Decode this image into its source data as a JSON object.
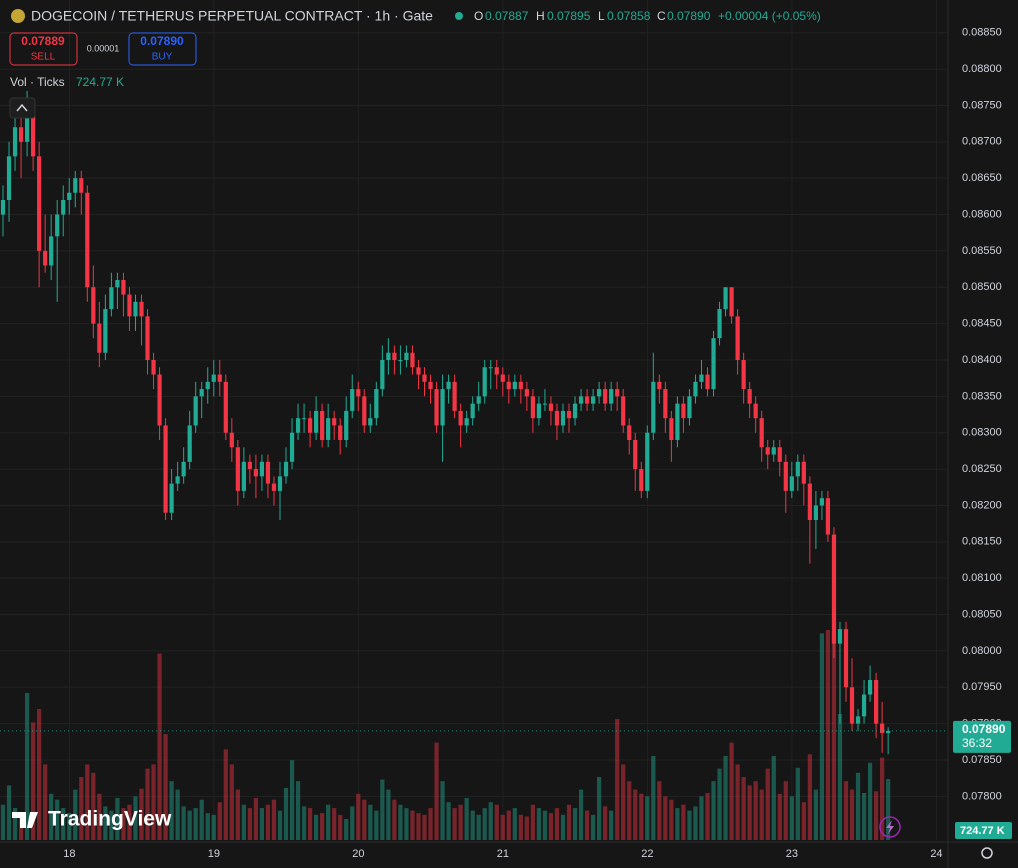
{
  "chart_data": {
    "type": "candlestick",
    "title": "DOGECOIN / TETHERUS PERPETUAL CONTRACT · 1h · Gate",
    "ohlc_legend": [
      {
        "key": "O",
        "value": "0.07887"
      },
      {
        "key": "H",
        "value": "0.07895"
      },
      {
        "key": "L",
        "value": "0.07858"
      },
      {
        "key": "C",
        "value": "0.07890"
      }
    ],
    "change": "+0.00004 (+0.05%)",
    "sell": {
      "price": "0.07889",
      "label": "SELL"
    },
    "spread": "0.00001",
    "buy": {
      "price": "0.07890",
      "label": "BUY"
    },
    "volume_legend": {
      "label": "Vol · Ticks",
      "value": "724.77 K"
    },
    "last_price_badge": {
      "price": "0.07890",
      "countdown": "36:32"
    },
    "volume_badge": "724.77 K",
    "watermark": "TradingView",
    "up_color": "#22ab94",
    "down_color": "#f23645",
    "grid": true,
    "xlim": [
      17.52,
      24.08
    ],
    "xticks": [
      18,
      19,
      20,
      21,
      22,
      23,
      24
    ],
    "ylim": [
      0.0774,
      0.08895
    ],
    "yticks": [
      {
        "value": 0.078,
        "label": "0.07800"
      },
      {
        "value": 0.0785,
        "label": "0.07850"
      },
      {
        "value": 0.079,
        "label": "0.07900"
      },
      {
        "value": 0.0795,
        "label": "0.07950"
      },
      {
        "value": 0.08,
        "label": "0.08000"
      },
      {
        "value": 0.0805,
        "label": "0.08050"
      },
      {
        "value": 0.081,
        "label": "0.08100"
      },
      {
        "value": 0.0815,
        "label": "0.08150"
      },
      {
        "value": 0.082,
        "label": "0.08200"
      },
      {
        "value": 0.0825,
        "label": "0.08250"
      },
      {
        "value": 0.083,
        "label": "0.08300"
      },
      {
        "value": 0.0835,
        "label": "0.08350"
      },
      {
        "value": 0.084,
        "label": "0.08400"
      },
      {
        "value": 0.0845,
        "label": "0.08450"
      },
      {
        "value": 0.085,
        "label": "0.08500"
      },
      {
        "value": 0.0855,
        "label": "0.08550"
      },
      {
        "value": 0.086,
        "label": "0.08600"
      },
      {
        "value": 0.0865,
        "label": "0.08650"
      },
      {
        "value": 0.087,
        "label": "0.08700"
      },
      {
        "value": 0.0875,
        "label": "0.08750"
      },
      {
        "value": 0.088,
        "label": "0.08800"
      },
      {
        "value": 0.0885,
        "label": "0.08850"
      }
    ],
    "candles": [
      [
        0.086,
        0.0864,
        0.0857,
        0.0862
      ],
      [
        0.0862,
        0.087,
        0.0859,
        0.0868
      ],
      [
        0.0868,
        0.0874,
        0.0866,
        0.0872
      ],
      [
        0.0872,
        0.0874,
        0.0865,
        0.087
      ],
      [
        0.087,
        0.0877,
        0.0868,
        0.0875
      ],
      [
        0.0875,
        0.0876,
        0.0866,
        0.0868
      ],
      [
        0.0868,
        0.087,
        0.085,
        0.0855
      ],
      [
        0.0855,
        0.086,
        0.0852,
        0.0853
      ],
      [
        0.0853,
        0.086,
        0.0851,
        0.0857
      ],
      [
        0.0857,
        0.0862,
        0.0848,
        0.086
      ],
      [
        0.086,
        0.0864,
        0.0857,
        0.0862
      ],
      [
        0.0862,
        0.0865,
        0.086,
        0.0863
      ],
      [
        0.0863,
        0.0866,
        0.0861,
        0.0865
      ],
      [
        0.0865,
        0.0866,
        0.086,
        0.0863
      ],
      [
        0.0863,
        0.0864,
        0.0848,
        0.085
      ],
      [
        0.085,
        0.0853,
        0.0843,
        0.0845
      ],
      [
        0.0845,
        0.0848,
        0.0839,
        0.0841
      ],
      [
        0.0841,
        0.0849,
        0.084,
        0.0847
      ],
      [
        0.0847,
        0.0852,
        0.0846,
        0.085
      ],
      [
        0.085,
        0.0852,
        0.0847,
        0.0851
      ],
      [
        0.0851,
        0.0852,
        0.0846,
        0.0849
      ],
      [
        0.0849,
        0.085,
        0.0844,
        0.0846
      ],
      [
        0.0846,
        0.0849,
        0.0844,
        0.0848
      ],
      [
        0.0848,
        0.0849,
        0.0842,
        0.0846
      ],
      [
        0.0846,
        0.0847,
        0.0838,
        0.084
      ],
      [
        0.084,
        0.0841,
        0.0836,
        0.0838
      ],
      [
        0.0838,
        0.0839,
        0.0829,
        0.0831
      ],
      [
        0.0831,
        0.0832,
        0.0818,
        0.0819
      ],
      [
        0.0819,
        0.0825,
        0.0818,
        0.0823
      ],
      [
        0.0823,
        0.0826,
        0.0822,
        0.0824
      ],
      [
        0.0824,
        0.0828,
        0.0823,
        0.0826
      ],
      [
        0.0826,
        0.0833,
        0.0825,
        0.0831
      ],
      [
        0.0831,
        0.0837,
        0.083,
        0.0835
      ],
      [
        0.0835,
        0.0837,
        0.0832,
        0.0836
      ],
      [
        0.0836,
        0.0839,
        0.0834,
        0.0837
      ],
      [
        0.0837,
        0.084,
        0.0835,
        0.0838
      ],
      [
        0.0838,
        0.084,
        0.0835,
        0.0837
      ],
      [
        0.0837,
        0.0838,
        0.0829,
        0.083
      ],
      [
        0.083,
        0.0832,
        0.0826,
        0.0828
      ],
      [
        0.0828,
        0.0829,
        0.082,
        0.0822
      ],
      [
        0.0822,
        0.0828,
        0.0821,
        0.0826
      ],
      [
        0.0826,
        0.0827,
        0.0823,
        0.0825
      ],
      [
        0.0825,
        0.0827,
        0.0821,
        0.0824
      ],
      [
        0.0824,
        0.0827,
        0.0822,
        0.0826
      ],
      [
        0.0826,
        0.0827,
        0.0821,
        0.0823
      ],
      [
        0.0823,
        0.0824,
        0.082,
        0.0822
      ],
      [
        0.0822,
        0.0826,
        0.0818,
        0.0824
      ],
      [
        0.0824,
        0.0828,
        0.0823,
        0.0826
      ],
      [
        0.0826,
        0.0832,
        0.0825,
        0.083
      ],
      [
        0.083,
        0.0834,
        0.0829,
        0.0832
      ],
      [
        0.0832,
        0.0834,
        0.083,
        0.0832
      ],
      [
        0.0832,
        0.0833,
        0.0828,
        0.083
      ],
      [
        0.083,
        0.0835,
        0.0829,
        0.0833
      ],
      [
        0.0833,
        0.0834,
        0.0828,
        0.0829
      ],
      [
        0.0829,
        0.0834,
        0.0828,
        0.0832
      ],
      [
        0.0832,
        0.0833,
        0.0829,
        0.0831
      ],
      [
        0.0831,
        0.0832,
        0.0827,
        0.0829
      ],
      [
        0.0829,
        0.0835,
        0.0828,
        0.0833
      ],
      [
        0.0833,
        0.0838,
        0.0832,
        0.0836
      ],
      [
        0.0836,
        0.0837,
        0.0833,
        0.0835
      ],
      [
        0.0835,
        0.0836,
        0.083,
        0.0831
      ],
      [
        0.0831,
        0.0834,
        0.083,
        0.0832
      ],
      [
        0.0832,
        0.0837,
        0.0831,
        0.0836
      ],
      [
        0.0836,
        0.0842,
        0.0835,
        0.084
      ],
      [
        0.084,
        0.0843,
        0.0838,
        0.0841
      ],
      [
        0.0841,
        0.0842,
        0.0838,
        0.084
      ],
      [
        0.084,
        0.0842,
        0.0838,
        0.084
      ],
      [
        0.084,
        0.0842,
        0.0839,
        0.0841
      ],
      [
        0.0841,
        0.0842,
        0.0838,
        0.0839
      ],
      [
        0.0839,
        0.084,
        0.0836,
        0.0838
      ],
      [
        0.0838,
        0.0839,
        0.0835,
        0.0837
      ],
      [
        0.0837,
        0.0838,
        0.0834,
        0.0836
      ],
      [
        0.0836,
        0.0837,
        0.083,
        0.0831
      ],
      [
        0.0831,
        0.0838,
        0.0826,
        0.0836
      ],
      [
        0.0836,
        0.0838,
        0.0834,
        0.0837
      ],
      [
        0.0837,
        0.0838,
        0.0832,
        0.0833
      ],
      [
        0.0833,
        0.0834,
        0.0828,
        0.0831
      ],
      [
        0.0831,
        0.0833,
        0.083,
        0.0832
      ],
      [
        0.0832,
        0.0835,
        0.0831,
        0.0834
      ],
      [
        0.0834,
        0.0837,
        0.0833,
        0.0835
      ],
      [
        0.0835,
        0.084,
        0.0834,
        0.0839
      ],
      [
        0.0839,
        0.084,
        0.0836,
        0.0839
      ],
      [
        0.0839,
        0.084,
        0.0836,
        0.0838
      ],
      [
        0.0838,
        0.0839,
        0.0835,
        0.0837
      ],
      [
        0.0837,
        0.0838,
        0.0834,
        0.0836
      ],
      [
        0.0836,
        0.0838,
        0.0835,
        0.0837
      ],
      [
        0.0837,
        0.0838,
        0.0834,
        0.0836
      ],
      [
        0.0836,
        0.0837,
        0.0833,
        0.0835
      ],
      [
        0.0835,
        0.0836,
        0.083,
        0.0832
      ],
      [
        0.0832,
        0.0835,
        0.0831,
        0.0834
      ],
      [
        0.0834,
        0.0836,
        0.0833,
        0.0834
      ],
      [
        0.0834,
        0.0835,
        0.0831,
        0.0833
      ],
      [
        0.0833,
        0.0834,
        0.0829,
        0.0831
      ],
      [
        0.0831,
        0.0834,
        0.083,
        0.0833
      ],
      [
        0.0833,
        0.0834,
        0.083,
        0.0832
      ],
      [
        0.0832,
        0.0835,
        0.0831,
        0.0834
      ],
      [
        0.0834,
        0.0836,
        0.0833,
        0.0835
      ],
      [
        0.0835,
        0.0836,
        0.0833,
        0.0834
      ],
      [
        0.0834,
        0.0836,
        0.0833,
        0.0835
      ],
      [
        0.0835,
        0.0837,
        0.0834,
        0.0836
      ],
      [
        0.0836,
        0.0837,
        0.0833,
        0.0834
      ],
      [
        0.0834,
        0.0837,
        0.0833,
        0.0836
      ],
      [
        0.0836,
        0.0837,
        0.0833,
        0.0835
      ],
      [
        0.0835,
        0.0836,
        0.083,
        0.0831
      ],
      [
        0.0831,
        0.0832,
        0.0827,
        0.0829
      ],
      [
        0.0829,
        0.083,
        0.0822,
        0.0825
      ],
      [
        0.0825,
        0.0826,
        0.0821,
        0.0822
      ],
      [
        0.0822,
        0.0831,
        0.0821,
        0.083
      ],
      [
        0.083,
        0.0841,
        0.0829,
        0.0837
      ],
      [
        0.0837,
        0.0838,
        0.0834,
        0.0836
      ],
      [
        0.0836,
        0.0837,
        0.083,
        0.0832
      ],
      [
        0.0832,
        0.0833,
        0.0826,
        0.0829
      ],
      [
        0.0829,
        0.0835,
        0.0828,
        0.0834
      ],
      [
        0.0834,
        0.0835,
        0.083,
        0.0832
      ],
      [
        0.0832,
        0.0836,
        0.0831,
        0.0835
      ],
      [
        0.0835,
        0.0838,
        0.0834,
        0.0837
      ],
      [
        0.0837,
        0.084,
        0.0836,
        0.0838
      ],
      [
        0.0838,
        0.0839,
        0.0835,
        0.0836
      ],
      [
        0.0836,
        0.0844,
        0.0835,
        0.0843
      ],
      [
        0.0843,
        0.0848,
        0.0842,
        0.0847
      ],
      [
        0.0847,
        0.085,
        0.0846,
        0.085
      ],
      [
        0.085,
        0.085,
        0.0845,
        0.0846
      ],
      [
        0.0846,
        0.0847,
        0.0838,
        0.084
      ],
      [
        0.084,
        0.0841,
        0.0834,
        0.0836
      ],
      [
        0.0836,
        0.0837,
        0.0832,
        0.0834
      ],
      [
        0.0834,
        0.0835,
        0.083,
        0.0832
      ],
      [
        0.0832,
        0.0833,
        0.0826,
        0.0828
      ],
      [
        0.0828,
        0.0829,
        0.0825,
        0.0827
      ],
      [
        0.0827,
        0.0829,
        0.0826,
        0.0828
      ],
      [
        0.0828,
        0.0829,
        0.0824,
        0.0826
      ],
      [
        0.0826,
        0.0827,
        0.0819,
        0.0822
      ],
      [
        0.0822,
        0.0826,
        0.0821,
        0.0824
      ],
      [
        0.0824,
        0.0827,
        0.0822,
        0.0826
      ],
      [
        0.0826,
        0.0827,
        0.082,
        0.0823
      ],
      [
        0.0823,
        0.0824,
        0.0812,
        0.0818
      ],
      [
        0.0818,
        0.0822,
        0.0814,
        0.082
      ],
      [
        0.082,
        0.0822,
        0.0818,
        0.0821
      ],
      [
        0.0821,
        0.0822,
        0.0815,
        0.0816
      ],
      [
        0.0816,
        0.0817,
        0.0799,
        0.0801
      ],
      [
        0.0801,
        0.0804,
        0.079,
        0.0803
      ],
      [
        0.0803,
        0.0804,
        0.0793,
        0.0795
      ],
      [
        0.0795,
        0.0799,
        0.0789,
        0.079
      ],
      [
        0.079,
        0.0792,
        0.0789,
        0.0791
      ],
      [
        0.0791,
        0.0796,
        0.079,
        0.0794
      ],
      [
        0.0794,
        0.0798,
        0.0793,
        0.0796
      ],
      [
        0.0796,
        0.0797,
        0.0788,
        0.079
      ],
      [
        0.079,
        0.0793,
        0.0786,
        0.07887
      ],
      [
        0.07887,
        0.07895,
        0.07858,
        0.0789
      ]
    ],
    "volumes": [
      420,
      650,
      380,
      300,
      1750,
      1400,
      1560,
      900,
      550,
      480,
      380,
      320,
      600,
      750,
      900,
      800,
      550,
      400,
      350,
      500,
      380,
      420,
      520,
      610,
      850,
      900,
      2220,
      1260,
      700,
      600,
      400,
      350,
      380,
      480,
      320,
      300,
      450,
      1080,
      900,
      600,
      420,
      380,
      500,
      380,
      420,
      480,
      350,
      620,
      950,
      700,
      400,
      380,
      300,
      320,
      420,
      380,
      300,
      250,
      400,
      550,
      480,
      420,
      350,
      720,
      600,
      480,
      420,
      380,
      350,
      320,
      300,
      380,
      1160,
      700,
      450,
      380,
      420,
      500,
      350,
      300,
      380,
      450,
      420,
      300,
      350,
      380,
      300,
      280,
      420,
      380,
      350,
      320,
      380,
      300,
      420,
      380,
      600,
      350,
      300,
      750,
      400,
      350,
      1440,
      900,
      700,
      600,
      550,
      520,
      1000,
      700,
      520,
      480,
      380,
      420,
      350,
      400,
      520,
      560,
      700,
      850,
      1000,
      1160,
      900,
      750,
      650,
      700,
      600,
      850,
      1000,
      550,
      700,
      520,
      860,
      450,
      1020,
      600,
      2460,
      2500,
      2500,
      1500,
      700,
      600,
      800,
      560,
      920,
      580,
      980,
      724.77
    ]
  }
}
